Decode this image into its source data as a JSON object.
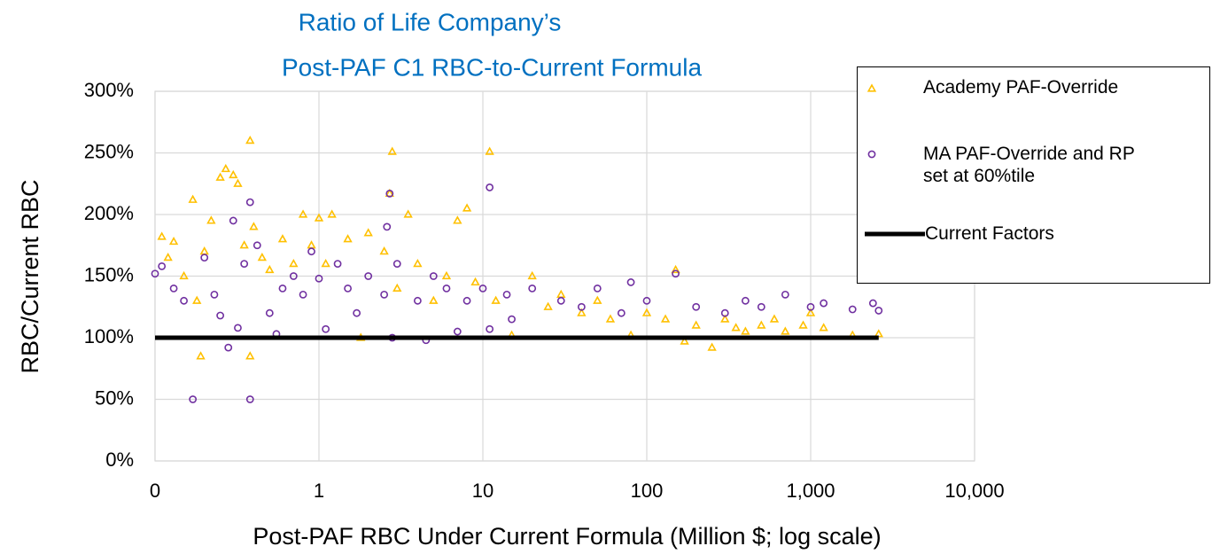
{
  "chart_data": {
    "type": "scatter",
    "title": [
      "Ratio of Life Company’s",
      "Post-PAF C1 RBC-to-Current Formula"
    ],
    "x_label": "Post-PAF RBC Under Current Formula (Million $; log scale)",
    "y_label": "RBC/Current RBC",
    "xlog": true,
    "grid": true,
    "xlim": [
      0.1,
      10000
    ],
    "xticks": [
      {
        "value": 0.1,
        "label": "0"
      },
      1,
      10,
      100,
      {
        "value": 1000,
        "label": "1,000"
      },
      {
        "value": 10000,
        "label": "10,000"
      }
    ],
    "ylim": [
      0,
      300
    ],
    "yticks": [
      {
        "value": 0,
        "label": "0%"
      },
      {
        "value": 50,
        "label": "50%"
      },
      {
        "value": 100,
        "label": "100%"
      },
      {
        "value": 150,
        "label": "150%"
      },
      {
        "value": 200,
        "label": "200%"
      },
      {
        "value": 250,
        "label": "250%"
      },
      {
        "value": 300,
        "label": "300%"
      }
    ],
    "legend": "top-right",
    "series": [
      {
        "name": "Academy PAF-Override",
        "color": "#ffc000",
        "marker": "triangle",
        "x": [
          0.11,
          0.12,
          0.13,
          0.15,
          0.17,
          0.18,
          0.19,
          0.2,
          0.22,
          0.25,
          0.27,
          0.3,
          0.32,
          0.35,
          0.38,
          0.38,
          0.4,
          0.45,
          0.5,
          0.6,
          0.7,
          0.8,
          0.9,
          1.0,
          1.1,
          1.2,
          1.5,
          1.8,
          2,
          2.5,
          2.8,
          2.7,
          3,
          3.5,
          4,
          5,
          6,
          7,
          8,
          9,
          11,
          12,
          15,
          20,
          25,
          30,
          40,
          50,
          60,
          80,
          100,
          130,
          150,
          170,
          200,
          250,
          300,
          400,
          500,
          700,
          900,
          1200,
          1800,
          2600,
          1000,
          600,
          350
        ],
        "values": [
          182,
          165,
          178,
          150,
          212,
          130,
          85,
          170,
          195,
          230,
          237,
          232,
          225,
          175,
          260,
          85,
          190,
          165,
          155,
          180,
          160,
          200,
          175,
          197,
          160,
          200,
          180,
          100,
          185,
          170,
          251,
          217,
          140,
          200,
          160,
          130,
          150,
          195,
          205,
          145,
          251,
          130,
          102,
          150,
          125,
          135,
          120,
          130,
          115,
          102,
          120,
          115,
          155,
          97,
          110,
          92,
          115,
          105,
          110,
          105,
          110,
          108,
          102,
          103,
          120,
          115,
          108
        ]
      },
      {
        "name": "MA PAF-Override and RP set at 60%tile",
        "color": "#7030a0",
        "marker": "circle",
        "x": [
          0.1,
          0.11,
          0.13,
          0.15,
          0.17,
          0.2,
          0.23,
          0.25,
          0.28,
          0.3,
          0.32,
          0.35,
          0.38,
          0.38,
          0.42,
          0.5,
          0.55,
          0.6,
          0.7,
          0.8,
          0.9,
          1.0,
          1.1,
          1.3,
          1.5,
          1.7,
          2,
          2.5,
          2.7,
          2.8,
          2.6,
          3,
          4,
          4.5,
          5,
          6,
          7,
          8,
          10,
          11,
          11,
          14,
          15,
          20,
          30,
          40,
          50,
          70,
          80,
          100,
          150,
          200,
          300,
          400,
          500,
          700,
          1000,
          1200,
          1800,
          2400,
          2600
        ],
        "values": [
          152,
          158,
          140,
          130,
          50,
          165,
          135,
          118,
          92,
          195,
          108,
          160,
          210,
          50,
          175,
          120,
          103,
          140,
          150,
          135,
          170,
          148,
          107,
          160,
          140,
          120,
          150,
          135,
          217,
          100,
          190,
          160,
          130,
          98,
          150,
          140,
          105,
          130,
          140,
          222,
          107,
          135,
          115,
          140,
          130,
          125,
          140,
          120,
          145,
          130,
          152,
          125,
          120,
          130,
          125,
          135,
          125,
          128,
          123,
          128,
          122
        ]
      },
      {
        "name": "Current Factors",
        "color": "#000000",
        "marker": "line",
        "x": [
          0.1,
          2600
        ],
        "values": [
          100,
          100
        ]
      }
    ]
  }
}
